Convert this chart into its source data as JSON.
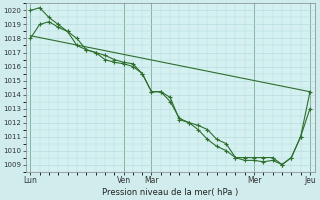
{
  "background_color": "#d0ecec",
  "plot_bg_color": "#d5f0f0",
  "grid_color": "#b0d8d8",
  "line_color": "#2d6e2d",
  "xlabel": "Pression niveau de la mer( hPa )",
  "ylim": [
    1008.5,
    1020.5
  ],
  "yticks": [
    1009,
    1010,
    1011,
    1012,
    1013,
    1014,
    1015,
    1016,
    1017,
    1018,
    1019,
    1020
  ],
  "major_xtick_positions": [
    0,
    40,
    52,
    96,
    120
  ],
  "major_xtick_labels": [
    "Lun",
    "Ven",
    "Mar",
    "Mer",
    "Jeu"
  ],
  "n_points": 121,
  "line_straight": {
    "x": [
      0,
      120
    ],
    "y": [
      1018.2,
      1014.2
    ]
  },
  "line_with_markers1_x": [
    0,
    4,
    8,
    12,
    16,
    20,
    24,
    28,
    32,
    36,
    40,
    44,
    48,
    52,
    56,
    60,
    64,
    68,
    72,
    76,
    80,
    84,
    88,
    92,
    96,
    100,
    104,
    108,
    112,
    116,
    120
  ],
  "line_with_markers1_y": [
    1018.0,
    1019.0,
    1019.2,
    1018.8,
    1018.5,
    1018.0,
    1017.2,
    1017.0,
    1016.8,
    1016.5,
    1016.3,
    1016.2,
    1015.5,
    1014.2,
    1014.2,
    1013.8,
    1012.2,
    1012.0,
    1011.8,
    1011.5,
    1010.8,
    1010.5,
    1009.5,
    1009.5,
    1009.5,
    1009.5,
    1009.5,
    1009.0,
    1009.5,
    1011.0,
    1013.0
  ],
  "line_with_markers2_x": [
    0,
    4,
    8,
    12,
    16,
    20,
    24,
    28,
    32,
    36,
    40,
    44,
    48,
    52,
    56,
    60,
    64,
    68,
    72,
    76,
    80,
    84,
    88,
    92,
    96,
    100,
    104,
    108,
    112,
    116,
    120
  ],
  "line_with_markers2_y": [
    1020.0,
    1020.2,
    1019.5,
    1019.0,
    1018.5,
    1017.5,
    1017.2,
    1017.0,
    1016.5,
    1016.3,
    1016.2,
    1016.0,
    1015.5,
    1014.2,
    1014.2,
    1013.5,
    1012.3,
    1012.0,
    1011.5,
    1010.8,
    1010.3,
    1010.0,
    1009.5,
    1009.3,
    1009.3,
    1009.2,
    1009.3,
    1009.0,
    1009.5,
    1011.0,
    1014.2
  ],
  "vline_positions": [
    0,
    40,
    52,
    96,
    120
  ],
  "vline_color": "#4a8a5a"
}
